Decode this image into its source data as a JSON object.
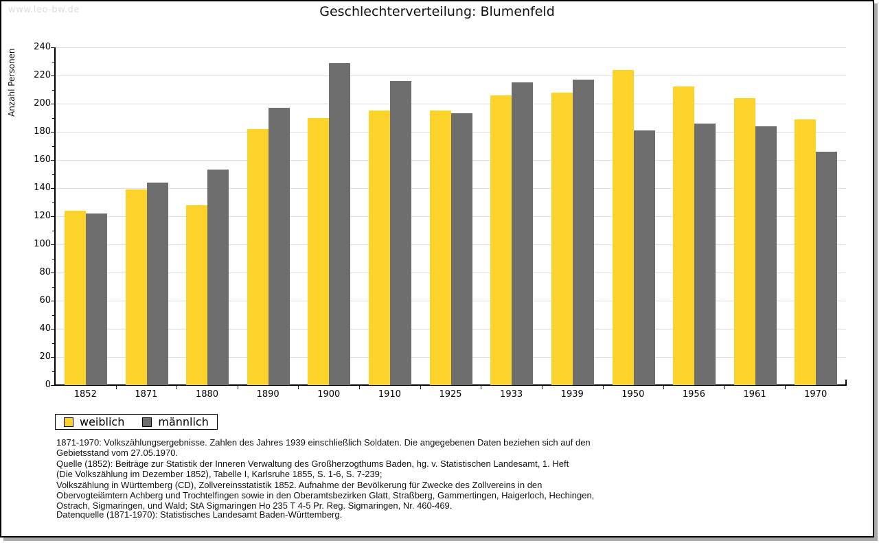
{
  "watermark": "www.leo-bw.de",
  "title": "Geschlechterverteilung: Blumenfeld",
  "chart_data": {
    "type": "bar",
    "title": "Geschlechterverteilung: Blumenfeld",
    "xlabel": "",
    "ylabel": "Anzahl Personen",
    "categories": [
      "1852",
      "1871",
      "1880",
      "1890",
      "1900",
      "1910",
      "1925",
      "1933",
      "1939",
      "1950",
      "1956",
      "1961",
      "1970"
    ],
    "series": [
      {
        "name": "weiblich",
        "color": "#FCD32B",
        "values": [
          124,
          139,
          128,
          182,
          190,
          195,
          195,
          206,
          208,
          224,
          212,
          204,
          189
        ]
      },
      {
        "name": "männlich",
        "color": "#6E6E6E",
        "values": [
          122,
          144,
          153,
          197,
          229,
          216,
          193,
          215,
          217,
          181,
          186,
          184,
          166
        ]
      }
    ],
    "ylim": [
      0,
      240
    ],
    "ytick_step": 20,
    "yminor_step": 10,
    "grid": "horizontal",
    "legend_position": "bottom-left"
  },
  "notes": {
    "lines": [
      "1871-1970: Volkszählungsergebnisse. Zahlen des Jahres 1939 einschließlich Soldaten. Die angegebenen Daten beziehen sich auf den",
      "Gebietsstand vom 27.05.1970.",
      "Quelle (1852): Beiträge zur Statistik der Inneren Verwaltung des Großherzogthums Baden, hg. v. Statistischen Landesamt, 1. Heft",
      "(Die Volkszählung im Dezember 1852), Tabelle I, Karlsruhe 1855, S. 1-6, S. 7-239;",
      "Volkszählung in Württemberg (CD), Zollvereinsstatistik 1852. Aufnahme der Bevölkerung für Zwecke des Zollvereins in den",
      "Obervogteiämtern Achberg und Trochtelfingen sowie in den Oberamtsbezirken Glatt, Straßberg, Gammertingen, Haigerloch, Hechingen,",
      "Ostrach, Sigmaringen, und Wald; StA Sigmaringen Ho 235 T 4-5 Pr. Reg. Sigmaringen, Nr. 460-469."
    ],
    "datasource": "Datenquelle (1871-1970): Statistisches Landesamt Baden-Württemberg."
  },
  "colors": {
    "female_bar": "#FCD32B",
    "male_bar": "#6E6E6E",
    "gridline": "#DDDDDD",
    "axis": "#000000",
    "watermark_text": "#DDDDDD",
    "frame_shadow": "#AAAAAA",
    "background": "#FFFFFF"
  }
}
